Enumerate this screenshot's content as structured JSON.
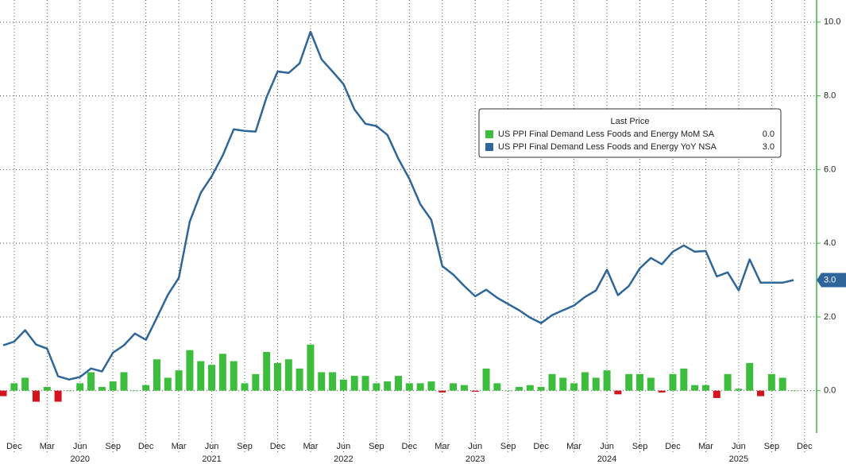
{
  "chart_data": {
    "type": "bar-line",
    "legend_title": "Last Price",
    "x": [
      "2019-11",
      "2019-12",
      "2020-01",
      "2020-02",
      "2020-03",
      "2020-04",
      "2020-05",
      "2020-06",
      "2020-07",
      "2020-08",
      "2020-09",
      "2020-10",
      "2020-11",
      "2020-12",
      "2021-01",
      "2021-02",
      "2021-03",
      "2021-04",
      "2021-05",
      "2021-06",
      "2021-07",
      "2021-08",
      "2021-09",
      "2021-10",
      "2021-11",
      "2021-12",
      "2022-01",
      "2022-02",
      "2022-03",
      "2022-04",
      "2022-05",
      "2022-06",
      "2022-07",
      "2022-08",
      "2022-09",
      "2022-10",
      "2022-11",
      "2022-12",
      "2023-01",
      "2023-02",
      "2023-03",
      "2023-04",
      "2023-05",
      "2023-06",
      "2023-07",
      "2023-08",
      "2023-09",
      "2023-10",
      "2023-11",
      "2023-12",
      "2024-01",
      "2024-02",
      "2024-03",
      "2024-04",
      "2024-05",
      "2024-06",
      "2024-07",
      "2024-08",
      "2024-09",
      "2024-10",
      "2024-11",
      "2024-12",
      "2025-01",
      "2025-02",
      "2025-03",
      "2025-04",
      "2025-05",
      "2025-06",
      "2025-07",
      "2025-08",
      "2025-09",
      "2025-10",
      "2025-11"
    ],
    "series": [
      {
        "name": "US PPI Final Demand Less Foods and Energy MoM SA",
        "last_label": "0.0",
        "color": "#3dbd3d",
        "negative_color": "#d4141c",
        "values": [
          -0.15,
          0.2,
          0.35,
          -0.3,
          0.1,
          -0.3,
          0.0,
          0.2,
          0.5,
          0.1,
          0.25,
          0.5,
          0.0,
          0.15,
          0.85,
          0.35,
          0.55,
          1.1,
          0.8,
          0.7,
          1.0,
          0.8,
          0.2,
          0.45,
          1.05,
          0.75,
          0.85,
          0.6,
          1.25,
          0.5,
          0.5,
          0.3,
          0.4,
          0.4,
          0.2,
          0.25,
          0.4,
          0.2,
          0.2,
          0.25,
          -0.05,
          0.2,
          0.15,
          -0.03,
          0.6,
          0.2,
          0.0,
          0.1,
          0.15,
          0.1,
          0.45,
          0.35,
          0.2,
          0.5,
          0.35,
          0.55,
          -0.1,
          0.45,
          0.45,
          0.35,
          -0.05,
          0.45,
          0.6,
          0.15,
          0.15,
          -0.2,
          0.45,
          0.05,
          0.75,
          -0.15,
          0.45,
          0.35,
          0.0
        ]
      },
      {
        "name": "US PPI Final Demand Less Foods and Energy YoY NSA",
        "last_label": "3.0",
        "color": "#2f6699",
        "values": [
          1.23,
          1.33,
          1.64,
          1.25,
          1.14,
          0.39,
          0.3,
          0.37,
          0.6,
          0.52,
          1.03,
          1.23,
          1.55,
          1.38,
          1.98,
          2.6,
          3.06,
          4.59,
          5.37,
          5.82,
          6.38,
          7.09,
          7.05,
          7.03,
          7.97,
          8.66,
          8.62,
          8.88,
          9.74,
          8.99,
          8.66,
          8.32,
          7.63,
          7.24,
          7.18,
          6.94,
          6.29,
          5.75,
          5.06,
          4.63,
          3.38,
          3.15,
          2.84,
          2.56,
          2.74,
          2.52,
          2.35,
          2.18,
          1.98,
          1.83,
          2.05,
          2.18,
          2.31,
          2.54,
          2.72,
          3.28,
          2.59,
          2.84,
          3.32,
          3.6,
          3.43,
          3.77,
          3.94,
          3.77,
          3.79,
          3.1,
          3.21,
          2.72,
          3.56,
          2.93,
          2.93,
          2.93,
          3.0
        ]
      }
    ],
    "ylim": [
      -1.15,
      10.6
    ],
    "yticks": [
      {
        "value": 0,
        "label": "0.0"
      },
      {
        "value": 2,
        "label": "2.0"
      },
      {
        "value": 4,
        "label": "4.0"
      },
      {
        "value": 6,
        "label": "6.0"
      },
      {
        "value": 8,
        "label": "8.0"
      },
      {
        "value": 10,
        "label": "10.0"
      }
    ],
    "xticks": [
      {
        "value": "2019-12",
        "label": "Dec"
      },
      {
        "value": "2020-03",
        "label": "Mar"
      },
      {
        "value": "2020-06",
        "label": "Jun"
      },
      {
        "value": "2020-09",
        "label": "Sep"
      },
      {
        "value": "2020-12",
        "label": "Dec"
      },
      {
        "value": "2021-03",
        "label": "Mar"
      },
      {
        "value": "2021-06",
        "label": "Jun"
      },
      {
        "value": "2021-09",
        "label": "Sep"
      },
      {
        "value": "2021-12",
        "label": "Dec"
      },
      {
        "value": "2022-03",
        "label": "Mar"
      },
      {
        "value": "2022-06",
        "label": "Jun"
      },
      {
        "value": "2022-09",
        "label": "Sep"
      },
      {
        "value": "2022-12",
        "label": "Dec"
      },
      {
        "value": "2023-03",
        "label": "Mar"
      },
      {
        "value": "2023-06",
        "label": "Jun"
      },
      {
        "value": "2023-09",
        "label": "Sep"
      },
      {
        "value": "2023-12",
        "label": "Dec"
      },
      {
        "value": "2024-03",
        "label": "Mar"
      },
      {
        "value": "2024-06",
        "label": "Jun"
      },
      {
        "value": "2024-09",
        "label": "Sep"
      },
      {
        "value": "2024-12",
        "label": "Dec"
      },
      {
        "value": "2025-03",
        "label": "Mar"
      },
      {
        "value": "2025-06",
        "label": "Jun"
      },
      {
        "value": "2025-09",
        "label": "Sep"
      },
      {
        "value": "2025-12",
        "label": "Dec"
      }
    ],
    "year_labels": [
      {
        "value": "2020-06",
        "label": "2020"
      },
      {
        "value": "2021-06",
        "label": "2021"
      },
      {
        "value": "2022-06",
        "label": "2022"
      },
      {
        "value": "2023-06",
        "label": "2023"
      },
      {
        "value": "2024-06",
        "label": "2024"
      },
      {
        "value": "2025-06",
        "label": "2025"
      }
    ],
    "grid": true,
    "axis_color": "#3fb33f"
  }
}
